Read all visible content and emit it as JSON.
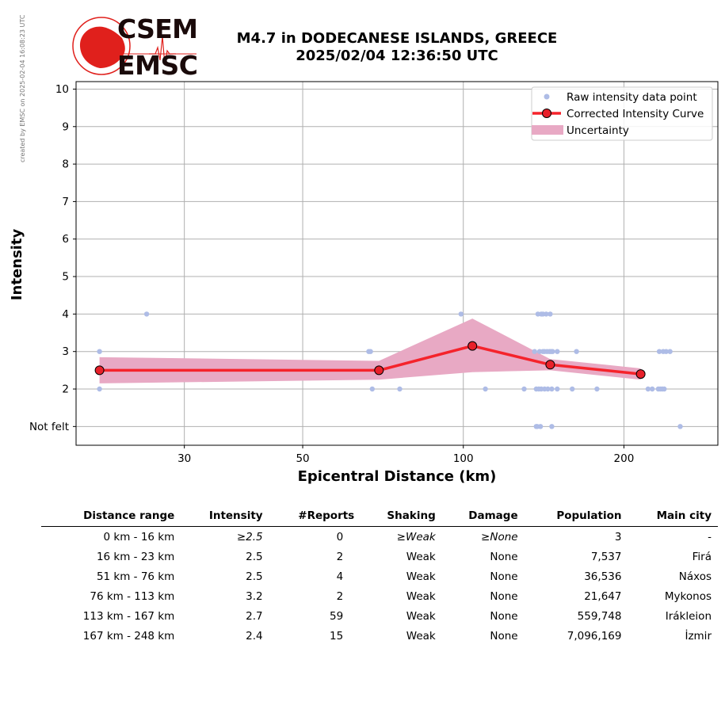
{
  "side_note": "created by EMSC on 2025-02-04 16:08:23 UTC",
  "logo": {
    "text_top": "CSEM",
    "text_bottom": "EMSC",
    "color_red": "#e0201c",
    "color_dark": "#1a0a0a"
  },
  "title": {
    "line1": "M4.7 in DODECANESE ISLANDS, GREECE",
    "line2": "2025/02/04 12:36:50 UTC"
  },
  "chart_data": {
    "type": "scatter",
    "xlabel": "Epicentral Distance (km)",
    "ylabel": "Intensity",
    "xscale": "log",
    "xlim": [
      18.8,
      300
    ],
    "ylim": [
      0.5,
      10.2
    ],
    "xticks": [
      30,
      50,
      100,
      200
    ],
    "yticks": [
      1,
      2,
      3,
      4,
      5,
      6,
      7,
      8,
      9,
      10
    ],
    "ytick_labels": [
      "Not felt",
      "2",
      "3",
      "4",
      "5",
      "6",
      "7",
      "8",
      "9",
      "10"
    ],
    "grid": true,
    "legend_position": "top-right",
    "legend": [
      "Raw intensity data point",
      "Corrected Intensity Curve",
      "Uncertainty"
    ],
    "colors": {
      "raw": "#aebce6",
      "curve": "#f5232b",
      "marker": "#e8202a",
      "uncertainty": "#e8a9c4",
      "grid": "#b0b0b0"
    },
    "raw_points": [
      [
        20.8,
        3
      ],
      [
        20.8,
        2
      ],
      [
        25.5,
        4
      ],
      [
        66.5,
        3
      ],
      [
        67,
        3
      ],
      [
        67.5,
        2
      ],
      [
        76,
        2
      ],
      [
        99,
        4
      ],
      [
        110,
        2
      ],
      [
        130,
        2
      ],
      [
        136,
        3
      ],
      [
        137,
        2
      ],
      [
        137,
        1
      ],
      [
        137.5,
        1
      ],
      [
        138,
        4
      ],
      [
        138.5,
        2
      ],
      [
        139,
        3
      ],
      [
        139.5,
        1
      ],
      [
        140,
        4
      ],
      [
        140,
        2
      ],
      [
        141,
        3
      ],
      [
        141,
        4
      ],
      [
        142,
        2
      ],
      [
        142,
        3
      ],
      [
        143,
        4
      ],
      [
        143.5,
        3
      ],
      [
        144,
        2
      ],
      [
        145,
        3
      ],
      [
        145.5,
        4
      ],
      [
        146,
        3
      ],
      [
        146.5,
        2
      ],
      [
        146.5,
        1
      ],
      [
        147,
        3
      ],
      [
        150,
        2
      ],
      [
        150,
        3
      ],
      [
        160,
        2
      ],
      [
        163,
        3
      ],
      [
        178,
        2
      ],
      [
        222,
        2
      ],
      [
        226,
        2
      ],
      [
        232,
        2
      ],
      [
        233,
        3
      ],
      [
        234,
        2
      ],
      [
        236,
        2
      ],
      [
        237,
        3
      ],
      [
        238,
        2
      ],
      [
        240,
        3
      ],
      [
        244,
        3
      ],
      [
        255,
        1
      ]
    ],
    "curve": {
      "x": [
        20.8,
        69.5,
        104,
        145.5,
        215
      ],
      "y": [
        2.5,
        2.5,
        3.15,
        2.65,
        2.4
      ]
    },
    "uncertainty": {
      "x": [
        20.8,
        69.5,
        104,
        145.5,
        215
      ],
      "upper": [
        2.85,
        2.75,
        3.88,
        2.8,
        2.55
      ],
      "lower": [
        2.15,
        2.25,
        2.45,
        2.5,
        2.25
      ]
    }
  },
  "table": {
    "headers": [
      "Distance range",
      "Intensity",
      "#Reports",
      "Shaking",
      "Damage",
      "Population",
      "Main city"
    ],
    "rows": [
      [
        "0 km -   16 km",
        "≥2.5",
        "0",
        "≥Weak",
        "≥None",
        "3",
        "-"
      ],
      [
        "16 km -   23 km",
        "2.5",
        "2",
        "Weak",
        "None",
        "7,537",
        "Firá"
      ],
      [
        "51 km -   76 km",
        "2.5",
        "4",
        "Weak",
        "None",
        "36,536",
        "Náxos"
      ],
      [
        "76 km -  113 km",
        "3.2",
        "2",
        "Weak",
        "None",
        "21,647",
        "Mykonos"
      ],
      [
        "113 km -  167 km",
        "2.7",
        "59",
        "Weak",
        "None",
        "559,748",
        "Irákleion"
      ],
      [
        "167 km -  248 km",
        "2.4",
        "15",
        "Weak",
        "None",
        "7,096,169",
        "İzmir"
      ]
    ]
  }
}
